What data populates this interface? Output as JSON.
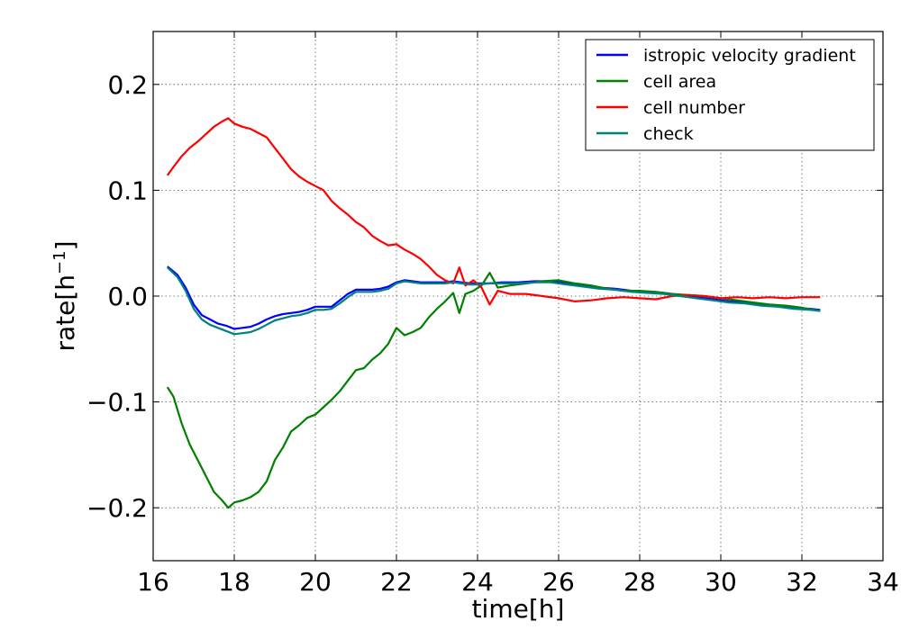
{
  "chart_data": {
    "type": "line",
    "title": "",
    "xlabel": "time[h]",
    "ylabel_prefix": "rate[h",
    "ylabel_exponent": "−1",
    "ylabel_suffix": "]",
    "xlim": [
      16,
      34
    ],
    "ylim": [
      -0.25,
      0.25
    ],
    "x_ticks": [
      16,
      18,
      20,
      22,
      24,
      26,
      28,
      30,
      32,
      34
    ],
    "x_tick_labels": [
      "16",
      "18",
      "20",
      "22",
      "24",
      "26",
      "28",
      "30",
      "32",
      "34"
    ],
    "y_ticks": [
      -0.2,
      -0.1,
      0.0,
      0.1,
      0.2
    ],
    "y_tick_labels": [
      "−0.2",
      "−0.1",
      "0.0",
      "0.1",
      "0.2"
    ],
    "grid": true,
    "legend_position": "top-right",
    "series": [
      {
        "name": "istropic velocity gradient",
        "color": "#0000ff",
        "x": [
          16.35,
          16.6,
          16.8,
          17.0,
          17.2,
          17.4,
          17.6,
          17.8,
          18.0,
          18.2,
          18.4,
          18.6,
          18.8,
          19.0,
          19.2,
          19.4,
          19.6,
          19.8,
          20.0,
          20.2,
          20.4,
          20.6,
          20.8,
          21.0,
          21.2,
          21.4,
          21.6,
          21.8,
          22.0,
          22.2,
          22.4,
          22.6,
          22.8,
          23.0,
          23.2,
          23.4,
          23.6,
          23.8,
          24.0,
          24.3,
          24.6,
          25.0,
          25.4,
          25.8,
          26.2,
          26.6,
          27.0,
          27.4,
          27.8,
          28.2,
          28.6,
          29.0,
          29.4,
          29.8,
          30.2,
          30.6,
          31.0,
          31.4,
          31.8,
          32.2,
          32.45
        ],
        "y": [
          0.028,
          0.02,
          0.008,
          -0.008,
          -0.018,
          -0.022,
          -0.026,
          -0.028,
          -0.031,
          -0.03,
          -0.029,
          -0.026,
          -0.022,
          -0.019,
          -0.017,
          -0.016,
          -0.015,
          -0.013,
          -0.01,
          -0.01,
          -0.01,
          -0.004,
          0.002,
          0.006,
          0.006,
          0.006,
          0.007,
          0.009,
          0.013,
          0.015,
          0.014,
          0.013,
          0.013,
          0.013,
          0.013,
          0.014,
          0.013,
          0.012,
          0.012,
          0.012,
          0.013,
          0.013,
          0.014,
          0.014,
          0.012,
          0.01,
          0.008,
          0.007,
          0.005,
          0.004,
          0.003,
          0.001,
          -0.001,
          -0.003,
          -0.005,
          -0.006,
          -0.008,
          -0.009,
          -0.011,
          -0.012,
          -0.013
        ]
      },
      {
        "name": "cell area",
        "color": "#008000",
        "x": [
          16.35,
          16.5,
          16.7,
          16.9,
          17.1,
          17.3,
          17.5,
          17.7,
          17.85,
          18.0,
          18.2,
          18.4,
          18.6,
          18.8,
          19.0,
          19.2,
          19.4,
          19.6,
          19.8,
          20.0,
          20.2,
          20.4,
          20.6,
          20.8,
          21.0,
          21.2,
          21.4,
          21.6,
          21.8,
          22.0,
          22.2,
          22.4,
          22.6,
          22.8,
          23.0,
          23.2,
          23.4,
          23.55,
          23.7,
          23.9,
          24.1,
          24.3,
          24.5,
          24.8,
          25.2,
          25.6,
          26.0,
          26.4,
          26.8,
          27.2,
          27.6,
          28.0,
          28.4,
          28.8,
          29.2,
          29.6,
          30.0,
          30.4,
          30.8,
          31.2,
          31.6,
          32.0,
          32.45
        ],
        "y": [
          -0.086,
          -0.095,
          -0.12,
          -0.14,
          -0.155,
          -0.17,
          -0.185,
          -0.193,
          -0.2,
          -0.195,
          -0.193,
          -0.19,
          -0.185,
          -0.175,
          -0.155,
          -0.143,
          -0.128,
          -0.122,
          -0.115,
          -0.112,
          -0.105,
          -0.098,
          -0.09,
          -0.08,
          -0.07,
          -0.068,
          -0.06,
          -0.054,
          -0.045,
          -0.03,
          -0.037,
          -0.034,
          -0.03,
          -0.02,
          -0.012,
          -0.005,
          0.003,
          -0.016,
          0.002,
          0.005,
          0.01,
          0.022,
          0.008,
          0.01,
          0.012,
          0.014,
          0.015,
          0.012,
          0.01,
          0.007,
          0.005,
          0.005,
          0.004,
          0.002,
          0.001,
          0.0,
          -0.002,
          -0.004,
          -0.006,
          -0.008,
          -0.009,
          -0.011,
          -0.014
        ]
      },
      {
        "name": "cell number",
        "color": "#ff0000",
        "x": [
          16.35,
          16.5,
          16.7,
          16.9,
          17.1,
          17.3,
          17.5,
          17.7,
          17.85,
          18.0,
          18.2,
          18.4,
          18.6,
          18.8,
          19.0,
          19.2,
          19.4,
          19.6,
          19.8,
          20.0,
          20.2,
          20.4,
          20.6,
          20.8,
          21.0,
          21.2,
          21.4,
          21.6,
          21.8,
          22.0,
          22.2,
          22.4,
          22.6,
          22.8,
          23.0,
          23.2,
          23.4,
          23.55,
          23.7,
          23.9,
          24.1,
          24.3,
          24.5,
          24.8,
          25.2,
          25.6,
          26.0,
          26.4,
          26.8,
          27.2,
          27.6,
          28.0,
          28.4,
          28.8,
          29.2,
          29.6,
          30.0,
          30.4,
          30.8,
          31.2,
          31.6,
          32.0,
          32.45
        ],
        "y": [
          0.114,
          0.122,
          0.132,
          0.14,
          0.146,
          0.153,
          0.16,
          0.165,
          0.168,
          0.163,
          0.16,
          0.158,
          0.154,
          0.15,
          0.14,
          0.13,
          0.12,
          0.113,
          0.108,
          0.104,
          0.1,
          0.09,
          0.083,
          0.077,
          0.07,
          0.065,
          0.057,
          0.052,
          0.048,
          0.049,
          0.044,
          0.04,
          0.035,
          0.028,
          0.02,
          0.015,
          0.012,
          0.027,
          0.01,
          0.015,
          0.008,
          -0.008,
          0.005,
          0.002,
          0.002,
          0.0,
          -0.002,
          -0.005,
          -0.004,
          -0.002,
          -0.001,
          -0.002,
          -0.003,
          0.0,
          0.001,
          0.0,
          -0.002,
          -0.001,
          -0.002,
          -0.001,
          -0.002,
          -0.001,
          -0.001
        ]
      },
      {
        "name": "check",
        "color": "#008080",
        "x": [
          16.35,
          16.6,
          16.8,
          17.0,
          17.2,
          17.4,
          17.6,
          17.8,
          18.0,
          18.2,
          18.4,
          18.6,
          18.8,
          19.0,
          19.2,
          19.4,
          19.6,
          19.8,
          20.0,
          20.2,
          20.4,
          20.6,
          20.8,
          21.0,
          21.2,
          21.4,
          21.6,
          21.8,
          22.0,
          22.2,
          22.4,
          22.6,
          22.8,
          23.0,
          23.2,
          23.4,
          23.6,
          23.8,
          24.0,
          24.3,
          24.6,
          25.0,
          25.4,
          25.8,
          26.2,
          26.6,
          27.0,
          27.4,
          27.8,
          28.2,
          28.6,
          29.0,
          29.4,
          29.8,
          30.2,
          30.6,
          31.0,
          31.4,
          31.8,
          32.2,
          32.45
        ],
        "y": [
          0.027,
          0.018,
          0.005,
          -0.012,
          -0.022,
          -0.027,
          -0.03,
          -0.033,
          -0.036,
          -0.035,
          -0.034,
          -0.031,
          -0.027,
          -0.023,
          -0.021,
          -0.019,
          -0.018,
          -0.016,
          -0.013,
          -0.013,
          -0.012,
          -0.007,
          -0.001,
          0.004,
          0.004,
          0.004,
          0.005,
          0.007,
          0.012,
          0.014,
          0.013,
          0.012,
          0.012,
          0.012,
          0.012,
          0.013,
          0.012,
          0.011,
          0.011,
          0.012,
          0.012,
          0.012,
          0.013,
          0.013,
          0.011,
          0.009,
          0.007,
          0.006,
          0.004,
          0.003,
          0.002,
          0.0,
          -0.002,
          -0.004,
          -0.006,
          -0.007,
          -0.009,
          -0.01,
          -0.012,
          -0.013,
          -0.014
        ]
      }
    ]
  }
}
